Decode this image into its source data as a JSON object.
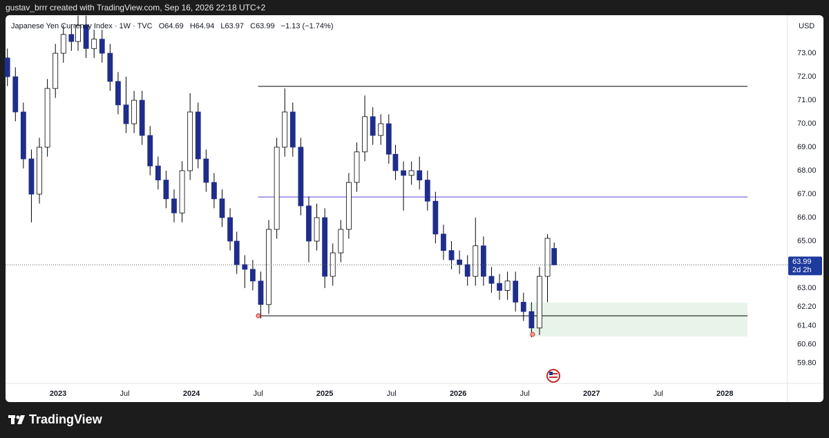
{
  "page": {
    "caption": "gustav_brrr created with TradingView.com, Sep 16, 2026 22:18 UTC+2",
    "brand": "TradingView"
  },
  "chart_data": {
    "type": "candlestick",
    "symbol": "Japanese Yen Currency Index · 1W · TVC",
    "ohlc_keys": [
      "O",
      "H",
      "L",
      "C"
    ],
    "change": "−1.13 (−1.74%)",
    "currency": "USD",
    "countdown": "2d 2h",
    "x": [
      2022.62,
      2022.68,
      2022.74,
      2022.8,
      2022.86,
      2022.92,
      2022.98,
      2023.04,
      2023.1,
      2023.15,
      2023.21,
      2023.27,
      2023.33,
      2023.39,
      2023.45,
      2023.51,
      2023.57,
      2023.63,
      2023.69,
      2023.75,
      2023.81,
      2023.87,
      2023.93,
      2023.99,
      2024.05,
      2024.11,
      2024.17,
      2024.23,
      2024.29,
      2024.34,
      2024.4,
      2024.46,
      2024.52,
      2024.58,
      2024.64,
      2024.7,
      2024.76,
      2024.82,
      2024.88,
      2024.94,
      2025.0,
      2025.06,
      2025.12,
      2025.18,
      2025.24,
      2025.3,
      2025.36,
      2025.42,
      2025.48,
      2025.53,
      2025.59,
      2025.65,
      2025.71,
      2025.77,
      2025.83,
      2025.89,
      2025.95,
      2026.01,
      2026.07,
      2026.13,
      2026.19,
      2026.25,
      2026.31,
      2026.37,
      2026.43,
      2026.49,
      2026.55,
      2026.61,
      2026.67,
      2026.72
    ],
    "open": [
      72.8,
      72.0,
      70.5,
      68.5,
      67.0,
      69.0,
      71.5,
      73.0,
      73.8,
      73.5,
      74.2,
      73.2,
      73.6,
      73.0,
      71.8,
      70.8,
      70.0,
      71.0,
      69.5,
      68.2,
      67.6,
      66.8,
      66.2,
      68.0,
      70.5,
      68.5,
      67.5,
      66.8,
      66.0,
      65.0,
      64.0,
      63.8,
      63.3,
      62.3,
      65.5,
      69.0,
      70.5,
      69.0,
      66.5,
      65.0,
      66.0,
      63.5,
      64.5,
      65.5,
      67.5,
      68.8,
      70.3,
      69.5,
      70.0,
      68.7,
      68.0,
      67.8,
      68.0,
      67.6,
      66.7,
      65.3,
      64.6,
      64.2,
      64.0,
      63.5,
      64.8,
      63.5,
      63.2,
      62.9,
      63.3,
      62.4,
      62.0,
      61.3,
      63.5,
      64.69
    ],
    "high": [
      73.2,
      72.4,
      70.9,
      68.9,
      69.4,
      71.9,
      73.4,
      74.2,
      74.2,
      74.6,
      74.6,
      74.0,
      74.0,
      73.4,
      72.2,
      72.0,
      71.4,
      71.4,
      69.9,
      68.6,
      68.0,
      67.2,
      68.4,
      71.3,
      70.9,
      68.9,
      67.9,
      67.2,
      66.4,
      65.4,
      64.4,
      64.2,
      63.7,
      65.9,
      69.4,
      71.5,
      70.9,
      69.4,
      66.9,
      66.6,
      66.4,
      64.9,
      65.9,
      67.9,
      69.2,
      71.2,
      70.7,
      70.4,
      70.4,
      69.1,
      68.4,
      68.4,
      68.6,
      68.0,
      67.1,
      65.7,
      65.0,
      64.6,
      64.4,
      66.0,
      65.2,
      63.9,
      63.6,
      63.7,
      63.7,
      62.8,
      62.4,
      63.9,
      65.3,
      64.94
    ],
    "low": [
      71.6,
      70.1,
      68.1,
      65.8,
      66.6,
      68.6,
      71.1,
      72.6,
      73.1,
      73.1,
      72.8,
      72.8,
      72.6,
      71.4,
      70.4,
      69.6,
      69.6,
      69.1,
      67.8,
      67.2,
      66.4,
      65.8,
      65.8,
      67.6,
      68.1,
      67.1,
      66.4,
      65.6,
      64.6,
      63.6,
      63.0,
      62.9,
      61.7,
      61.9,
      65.1,
      68.6,
      68.6,
      66.1,
      64.1,
      64.6,
      63.0,
      63.1,
      64.1,
      65.1,
      67.1,
      68.4,
      69.1,
      69.1,
      68.3,
      67.6,
      66.3,
      67.4,
      67.2,
      66.3,
      64.9,
      64.2,
      63.8,
      63.6,
      63.1,
      63.1,
      63.1,
      62.8,
      62.5,
      62.5,
      62.0,
      61.6,
      60.9,
      61.0,
      62.4,
      63.97
    ],
    "close": [
      72.0,
      70.5,
      68.5,
      67.0,
      69.0,
      71.5,
      73.0,
      73.8,
      73.5,
      74.2,
      73.2,
      73.6,
      73.0,
      71.8,
      70.8,
      70.0,
      71.0,
      69.5,
      68.2,
      67.6,
      66.8,
      66.2,
      68.0,
      70.5,
      68.5,
      67.5,
      66.8,
      66.0,
      65.0,
      64.0,
      63.8,
      63.3,
      62.3,
      65.5,
      69.0,
      70.5,
      69.0,
      66.5,
      65.0,
      66.0,
      63.5,
      64.5,
      65.5,
      67.5,
      68.8,
      70.3,
      69.5,
      70.0,
      68.7,
      68.0,
      67.8,
      68.0,
      67.6,
      66.7,
      65.3,
      64.6,
      64.2,
      64.0,
      63.5,
      64.8,
      63.5,
      63.2,
      62.9,
      63.3,
      62.4,
      62.0,
      61.3,
      63.5,
      65.12,
      63.99
    ],
    "up_color": "#ffffff",
    "down_color": "#1f2e8a",
    "wick_color": "#000000",
    "price_line_color": "#1e3a9e",
    "levels": [
      {
        "value": 71.59,
        "from": 2024.5,
        "to": 2028.17,
        "color": "#000000"
      },
      {
        "value": 66.88,
        "from": 2024.5,
        "to": 2028.17,
        "color": "#5b3fd1"
      },
      {
        "value": 61.82,
        "from": 2024.5,
        "to": 2028.17,
        "color": "#000000"
      }
    ],
    "zone": {
      "top": 62.38,
      "bottom": 60.94,
      "from": 2026.53,
      "to": 2028.17,
      "color": "#e8f4ea"
    },
    "xlim": [
      2022.606,
      2028.47
    ],
    "xticks": [
      2023,
      {
        "value": 2023.5,
        "label": "Jul"
      },
      2024,
      {
        "value": 2024.5,
        "label": "Jul"
      },
      2025,
      {
        "value": 2025.5,
        "label": "Jul"
      },
      2026,
      {
        "value": 2026.5,
        "label": "Jul"
      },
      2027,
      {
        "value": 2027.5,
        "label": "Jul"
      },
      2028
    ],
    "ylim": [
      58.94,
      74.62
    ],
    "yticks": [
      {
        "value": 73,
        "label": "73.00"
      },
      {
        "value": 72,
        "label": "72.00"
      },
      {
        "value": 71,
        "label": "71.00"
      },
      {
        "value": 70,
        "label": "70.00"
      },
      {
        "value": 69,
        "label": "69.00"
      },
      {
        "value": 68,
        "label": "68.00"
      },
      {
        "value": 67,
        "label": "67.00"
      },
      {
        "value": 66,
        "label": "66.00"
      },
      {
        "value": 65,
        "label": "65.00"
      },
      {
        "value": 63,
        "label": "63.00"
      },
      {
        "value": 62.2,
        "label": "62.20"
      },
      {
        "value": 61.4,
        "label": "61.40"
      },
      {
        "value": 60.6,
        "label": "60.60"
      },
      {
        "value": 59.8,
        "label": "59.80"
      }
    ],
    "grid": false
  }
}
